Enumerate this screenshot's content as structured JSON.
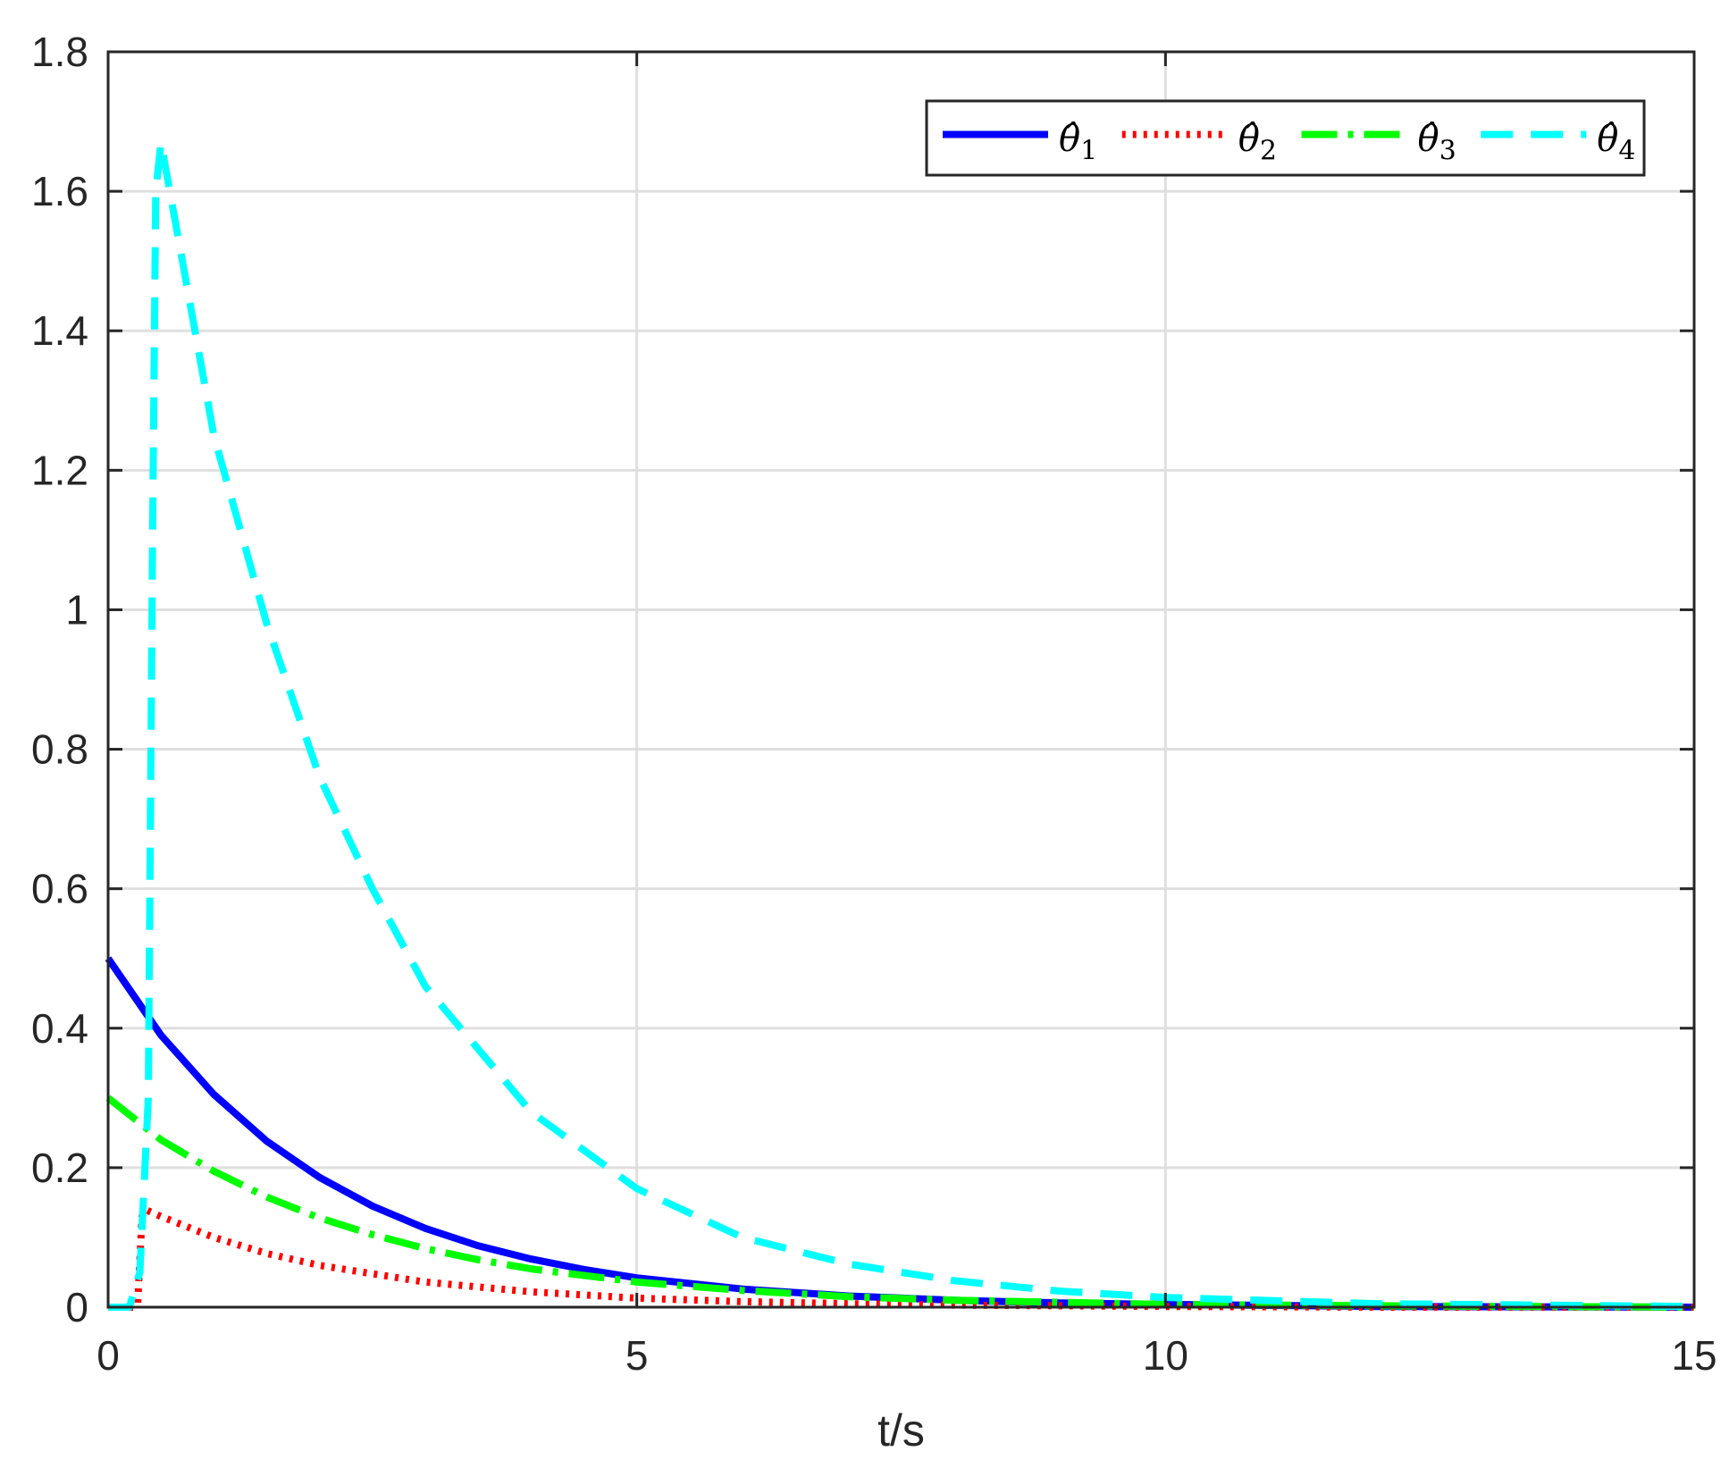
{
  "chart_data": {
    "type": "line",
    "title": "",
    "xlabel": "t/s",
    "ylabel": "",
    "xlim": [
      0,
      15
    ],
    "ylim": [
      0,
      1.8
    ],
    "xticks": [
      0,
      5,
      10,
      15
    ],
    "xtick_labels": [
      "0",
      "5",
      "10",
      "15"
    ],
    "yticks": [
      0,
      0.2,
      0.4,
      0.6,
      0.8,
      1,
      1.2,
      1.4,
      1.6,
      1.8
    ],
    "ytick_labels": [
      "0",
      "0.2",
      "0.4",
      "0.6",
      "0.8",
      "1",
      "1.2",
      "1.4",
      "1.6",
      "1.8"
    ],
    "grid": true,
    "legend": {
      "placement": "top-right",
      "orientation": "horizontal"
    },
    "series": [
      {
        "name": "θ̂1",
        "color": "#0000ff",
        "style": "solid",
        "x": [
          0,
          0.5,
          1,
          1.5,
          2,
          2.5,
          3,
          3.5,
          4,
          4.5,
          5,
          6,
          7,
          8,
          9,
          10,
          12,
          15
        ],
        "y": [
          0.5,
          0.39,
          0.305,
          0.238,
          0.186,
          0.145,
          0.113,
          0.088,
          0.069,
          0.054,
          0.042,
          0.026,
          0.016,
          0.01,
          0.006,
          0.004,
          0.001,
          0
        ]
      },
      {
        "name": "θ̂2",
        "color": "#ff0000",
        "style": "dotted",
        "x": [
          0,
          0.25,
          0.28,
          0.32,
          0.35,
          0.5,
          1,
          1.5,
          2,
          3,
          4,
          5,
          6,
          7,
          8,
          10,
          12,
          15
        ],
        "y": [
          0,
          0,
          0.005,
          0.13,
          0.14,
          0.13,
          0.1,
          0.077,
          0.06,
          0.036,
          0.022,
          0.013,
          0.008,
          0.005,
          0.003,
          0.001,
          0,
          0
        ]
      },
      {
        "name": "θ̂3",
        "color": "#00ff00",
        "style": "dashdot",
        "x": [
          0,
          0.5,
          1,
          1.5,
          2,
          2.5,
          3,
          3.5,
          4,
          5,
          6,
          7,
          8,
          10,
          12,
          15
        ],
        "y": [
          0.3,
          0.24,
          0.195,
          0.158,
          0.128,
          0.104,
          0.084,
          0.068,
          0.055,
          0.036,
          0.024,
          0.015,
          0.01,
          0.004,
          0.002,
          0
        ]
      },
      {
        "name": "θ̂4",
        "color": "#00ffff",
        "style": "dashed",
        "x": [
          0,
          0.2,
          0.3,
          0.38,
          0.42,
          0.45,
          0.5,
          1,
          1.5,
          2,
          2.5,
          3,
          4,
          5,
          6,
          7,
          8,
          9,
          10,
          12,
          15
        ],
        "y": [
          0,
          0,
          0.05,
          0.3,
          1.1,
          1.6,
          1.67,
          1.25,
          0.98,
          0.76,
          0.6,
          0.46,
          0.28,
          0.17,
          0.1,
          0.062,
          0.038,
          0.023,
          0.014,
          0.005,
          0.001
        ]
      }
    ]
  }
}
